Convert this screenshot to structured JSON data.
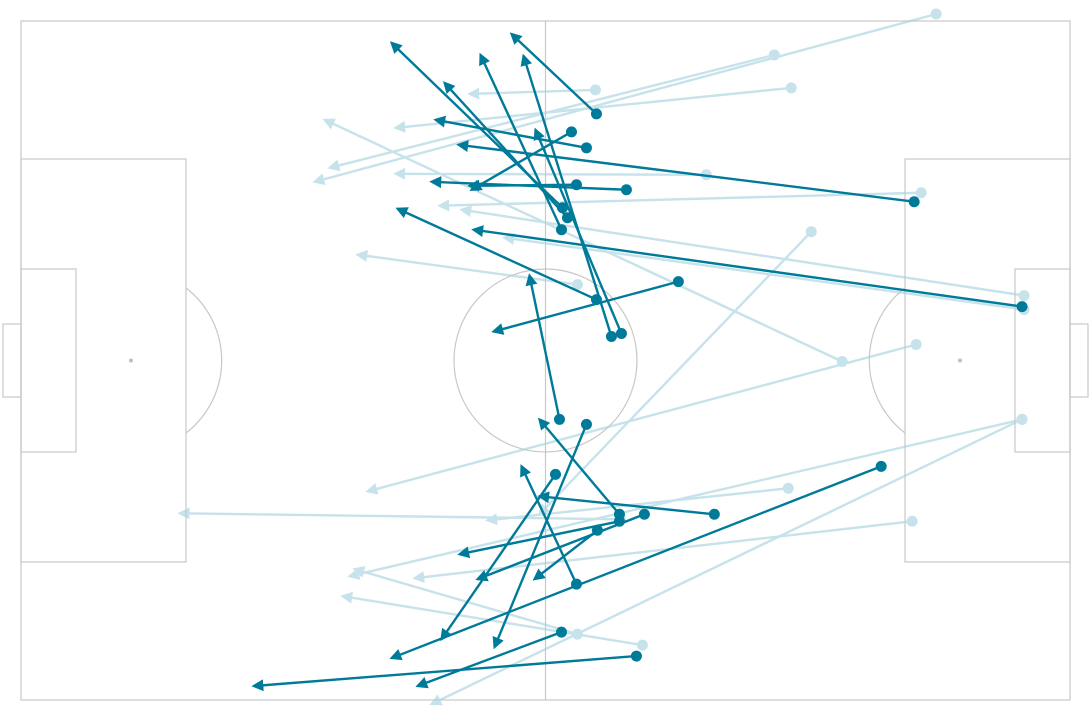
{
  "chart_data": {
    "type": "pass-map",
    "xlim": [
      0,
      105
    ],
    "ylim": [
      0,
      68
    ],
    "y_inverted": true,
    "series": [
      {
        "color": "#a9d3df",
        "opacity": 0.65,
        "passes": [
          [
            91.6,
            -0.7,
            29.4,
            16.1
          ],
          [
            75.4,
            3.4,
            30.9,
            14.7
          ],
          [
            77.1,
            6.7,
            37.5,
            10.7
          ],
          [
            57.5,
            6.9,
            44.9,
            7.3
          ],
          [
            68.6,
            15.4,
            37.5,
            15.3
          ],
          [
            90.1,
            17.2,
            41.9,
            18.5
          ],
          [
            79.1,
            21.1,
            51.9,
            49.4
          ],
          [
            100.4,
            27.5,
            44.1,
            18.9
          ],
          [
            100.4,
            28.9,
            48.4,
            21.7
          ],
          [
            82.2,
            34.1,
            30.4,
            9.9
          ],
          [
            55.7,
            26.4,
            33.7,
            23.4
          ],
          [
            89.6,
            32.4,
            34.7,
            47.1
          ],
          [
            100.2,
            39.9,
            32.9,
            55.6
          ],
          [
            100.2,
            39.9,
            41.1,
            68.4
          ],
          [
            89.2,
            50.1,
            39.4,
            55.8
          ],
          [
            76.8,
            46.8,
            46.7,
            50.0
          ],
          [
            62.2,
            62.5,
            32.2,
            57.6
          ],
          [
            55.7,
            61.4,
            33.4,
            54.9
          ],
          [
            60.0,
            49.9,
            15.9,
            49.3
          ]
        ]
      },
      {
        "color": "#007a99",
        "opacity": 1,
        "passes": [
          [
            57.6,
            9.3,
            49.1,
            1.3
          ],
          [
            56.6,
            12.7,
            41.5,
            9.9
          ],
          [
            55.1,
            11.1,
            45.1,
            16.9
          ],
          [
            54.2,
            18.7,
            37.1,
            2.2
          ],
          [
            54.7,
            19.7,
            42.4,
            6.2
          ],
          [
            54.1,
            20.9,
            46.0,
            3.4
          ],
          [
            89.4,
            18.1,
            43.8,
            12.4
          ],
          [
            60.6,
            16.9,
            41.1,
            16.1
          ],
          [
            55.6,
            16.4,
            44.9,
            16.5
          ],
          [
            100.2,
            28.6,
            45.3,
            20.9
          ],
          [
            57.6,
            27.9,
            37.7,
            18.8
          ],
          [
            59.1,
            31.6,
            50.3,
            3.5
          ],
          [
            60.1,
            31.3,
            51.5,
            10.9
          ],
          [
            65.8,
            26.1,
            47.3,
            31.1
          ],
          [
            53.9,
            39.9,
            50.9,
            25.5
          ],
          [
            56.6,
            40.4,
            47.4,
            62.7
          ],
          [
            53.5,
            45.4,
            42.1,
            61.9
          ],
          [
            59.9,
            49.4,
            51.9,
            39.9
          ],
          [
            69.4,
            49.4,
            51.9,
            47.6
          ],
          [
            62.4,
            49.4,
            45.7,
            55.9
          ],
          [
            59.9,
            50.1,
            43.9,
            53.4
          ],
          [
            57.7,
            51.0,
            51.4,
            55.9
          ],
          [
            55.6,
            56.4,
            50.1,
            44.6
          ],
          [
            86.1,
            44.6,
            37.1,
            63.8
          ],
          [
            54.1,
            61.2,
            39.7,
            66.6
          ],
          [
            61.6,
            63.6,
            23.3,
            66.6
          ]
        ]
      }
    ]
  }
}
